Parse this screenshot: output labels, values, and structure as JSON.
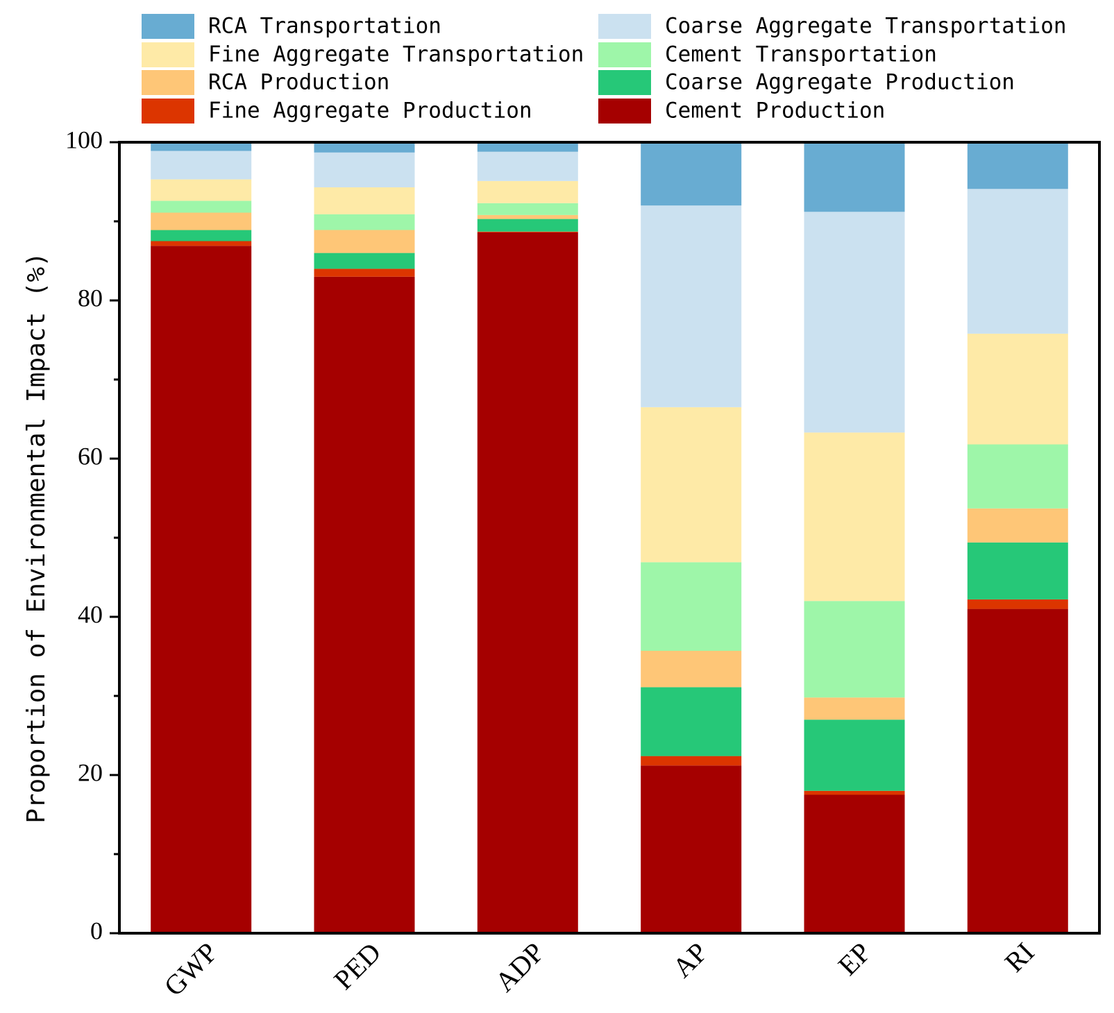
{
  "chart_data": {
    "type": "bar",
    "stacked": true,
    "title": "",
    "xlabel": "",
    "ylabel": "Proportion of Environmental Impact (%)",
    "ylim": [
      0,
      100
    ],
    "yticks": [
      0,
      20,
      40,
      60,
      80,
      100
    ],
    "categories": [
      "GWP",
      "PED",
      "ADP",
      "AP",
      "EP",
      "RI"
    ],
    "series": [
      {
        "name": "Cement Production",
        "color": "#a50000",
        "values": [
          86.9,
          83.0,
          88.6,
          21.2,
          17.5,
          41.0
        ]
      },
      {
        "name": "Fine Aggregate Production",
        "color": "#dc3500",
        "values": [
          0.6,
          1.0,
          0.1,
          1.2,
          0.5,
          1.2
        ]
      },
      {
        "name": "Coarse Aggregate Production",
        "color": "#26c878",
        "values": [
          1.4,
          2.0,
          1.6,
          8.7,
          9.0,
          7.2
        ]
      },
      {
        "name": "RCA Production",
        "color": "#fec677",
        "values": [
          2.2,
          2.9,
          0.5,
          4.6,
          2.8,
          4.3
        ]
      },
      {
        "name": "Cement Transportation",
        "color": "#9ef6a9",
        "values": [
          1.5,
          2.0,
          1.5,
          11.2,
          12.2,
          8.1
        ]
      },
      {
        "name": "Fine Aggregate Transportation",
        "color": "#feeaa7",
        "values": [
          2.7,
          3.4,
          2.8,
          19.6,
          21.3,
          14.0
        ]
      },
      {
        "name": "Coarse Aggregate Transportation",
        "color": "#cbe1f0",
        "values": [
          3.6,
          4.4,
          3.7,
          25.5,
          27.9,
          18.3
        ]
      },
      {
        "name": "RCA Transportation",
        "color": "#68acd2",
        "values": [
          1.1,
          1.3,
          1.2,
          8.0,
          8.8,
          5.9
        ]
      }
    ],
    "legend": {
      "placement": "top",
      "order": [
        "RCA Transportation",
        "Coarse Aggregate Transportation",
        "Fine Aggregate Transportation",
        "Cement Transportation",
        "RCA Production",
        "Coarse Aggregate Production",
        "Fine Aggregate Production",
        "Cement Production"
      ]
    },
    "grid": false
  }
}
